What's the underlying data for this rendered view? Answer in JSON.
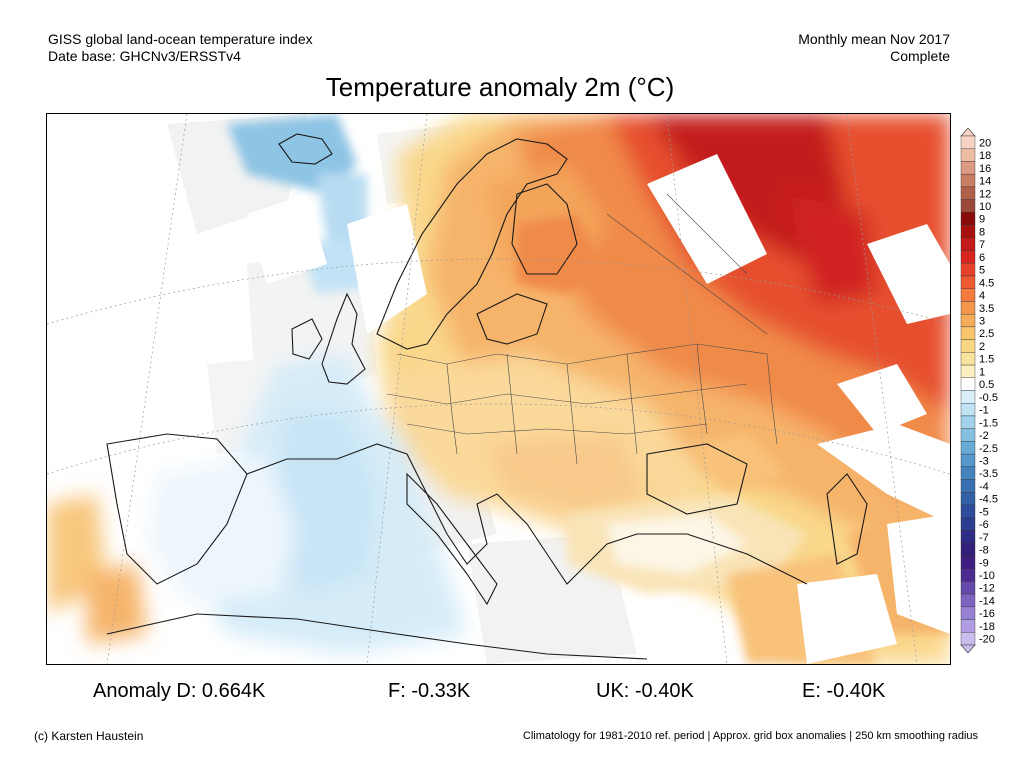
{
  "header": {
    "dataset": "GISS global land-ocean temperature index",
    "database": "Date base: GHCNv3/ERSSTv4",
    "period": "Monthly mean Nov 2017",
    "status": "Complete"
  },
  "title": "Temperature anomaly 2m (°C)",
  "colorbar": {
    "labels": [
      "20",
      "18",
      "16",
      "14",
      "12",
      "10",
      "9",
      "8",
      "7",
      "6",
      "5",
      "4.5",
      "4",
      "3.5",
      "3",
      "2.5",
      "2",
      "1.5",
      "1",
      "0.5",
      "-0.5",
      "-1",
      "-1.5",
      "-2",
      "-2.5",
      "-3",
      "-3.5",
      "-4",
      "-4.5",
      "-5",
      "-6",
      "-7",
      "-8",
      "-9",
      "-10",
      "-12",
      "-14",
      "-16",
      "-18",
      "-20"
    ],
    "colors": [
      "#f6d5c4",
      "#eebba4",
      "#dc9a82",
      "#c87c62",
      "#b1604a",
      "#9a4838",
      "#8a0a0a",
      "#a81010",
      "#c41a1a",
      "#d8261e",
      "#e8412a",
      "#ee5a30",
      "#f27a3c",
      "#f4964a",
      "#f6ad5a",
      "#f8c46c",
      "#f9d684",
      "#fae39c",
      "#fbefbf",
      "#ffffff",
      "#d9eef9",
      "#bfe2f4",
      "#a2d1ec",
      "#86bfe2",
      "#6aaad6",
      "#5597ca",
      "#4584be",
      "#3a70b2",
      "#3460a8",
      "#2e4e9c",
      "#2b3d90",
      "#2c2c84",
      "#331f7a",
      "#3c1e80",
      "#4d2c92",
      "#6448aa",
      "#7d64c0",
      "#9680d4",
      "#b09ce2",
      "#cbbcee"
    ]
  },
  "stats": {
    "d": "Anomaly D: 0.664K",
    "f": "F: -0.33K",
    "uk": "UK: -0.40K",
    "e": "E: -0.40K"
  },
  "footer": {
    "credit": "(c) Karsten Haustein",
    "climatology": "Climatology for 1981-2010 ref. period | Approx. grid box anomalies | 250 km smoothing radius"
  }
}
